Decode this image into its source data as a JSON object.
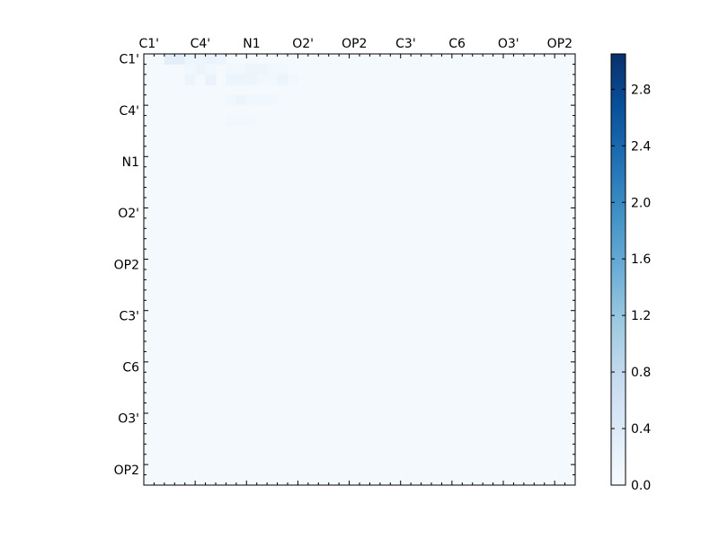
{
  "chart_data": {
    "type": "heatmap",
    "x_tick_labels": [
      "C1'",
      "C4'",
      "N1",
      "O2'",
      "OP2",
      "C3'",
      "C6",
      "O3'",
      "OP2"
    ],
    "y_tick_labels": [
      "C1'",
      "C4'",
      "N1",
      "O2'",
      "OP2",
      "C3'",
      "C6",
      "O3'",
      "OP2"
    ],
    "x_tick_position": "top",
    "colorbar": {
      "min": 0.0,
      "max": 3.05,
      "tick_labels": [
        "0.0",
        "0.4",
        "0.8",
        "1.2",
        "1.6",
        "2.0",
        "2.4",
        "2.8"
      ],
      "ticks": [
        0.0,
        0.4,
        0.8,
        1.2,
        1.6,
        2.0,
        2.4,
        2.8
      ],
      "colormap": "Blues",
      "colors": [
        "#f7fbff",
        "#deebf7",
        "#c6dbef",
        "#9ecae1",
        "#6baed6",
        "#4292c6",
        "#2171b5",
        "#08519c",
        "#08306b"
      ]
    },
    "grid_size": 42,
    "cells": [
      [
        0,
        2,
        0.3
      ],
      [
        0,
        3,
        0.3
      ],
      [
        0,
        4,
        0.15
      ],
      [
        0,
        5,
        0.15
      ],
      [
        0,
        6,
        0.2
      ],
      [
        0,
        7,
        0.15
      ],
      [
        1,
        4,
        0.1
      ],
      [
        1,
        5,
        0.15
      ],
      [
        1,
        6,
        0.1
      ],
      [
        2,
        4,
        0.15
      ],
      [
        2,
        6,
        0.2
      ],
      [
        0,
        8,
        0.05
      ],
      [
        0,
        9,
        0.05
      ],
      [
        0,
        10,
        0.05
      ],
      [
        0,
        11,
        0.05
      ],
      [
        0,
        12,
        0.05
      ],
      [
        0,
        13,
        0.05
      ],
      [
        0,
        14,
        0.05
      ],
      [
        1,
        8,
        0.1
      ],
      [
        1,
        9,
        0.1
      ],
      [
        1,
        10,
        0.15
      ],
      [
        1,
        11,
        0.15
      ],
      [
        1,
        12,
        0.1
      ],
      [
        1,
        13,
        0.1
      ],
      [
        1,
        14,
        0.05
      ],
      [
        2,
        8,
        0.15
      ],
      [
        2,
        9,
        0.15
      ],
      [
        2,
        10,
        0.15
      ],
      [
        2,
        11,
        0.1
      ],
      [
        2,
        12,
        0.1
      ],
      [
        2,
        13,
        0.15
      ],
      [
        2,
        14,
        0.1
      ],
      [
        3,
        8,
        0.05
      ],
      [
        3,
        9,
        0.05
      ],
      [
        3,
        10,
        0.05
      ],
      [
        3,
        11,
        0.05
      ],
      [
        3,
        12,
        0.05
      ],
      [
        3,
        13,
        0.05
      ],
      [
        3,
        14,
        0.05
      ],
      [
        4,
        8,
        0.1
      ],
      [
        4,
        9,
        0.15
      ],
      [
        4,
        10,
        0.1
      ],
      [
        4,
        11,
        0.1
      ],
      [
        4,
        12,
        0.1
      ],
      [
        4,
        13,
        0.05
      ],
      [
        4,
        14,
        0.05
      ],
      [
        5,
        8,
        0.05
      ],
      [
        5,
        9,
        0.05
      ],
      [
        5,
        10,
        0.05
      ],
      [
        5,
        11,
        0.05
      ],
      [
        5,
        12,
        0.05
      ],
      [
        5,
        13,
        0.05
      ],
      [
        6,
        8,
        0.1
      ],
      [
        6,
        9,
        0.1
      ],
      [
        6,
        10,
        0.1
      ],
      [
        6,
        11,
        0.05
      ],
      [
        6,
        12,
        0.05
      ],
      [
        6,
        13,
        0.05
      ]
    ]
  }
}
